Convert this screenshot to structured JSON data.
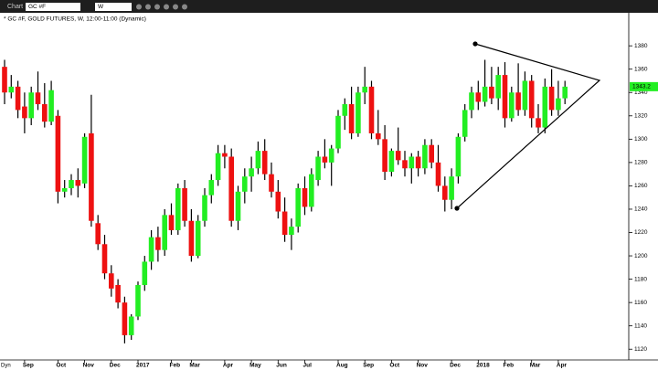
{
  "toolbar": {
    "window": "Chart",
    "symbol": "GC #F",
    "interval": "W"
  },
  "footer": "Dyn",
  "chart_data": {
    "type": "candlestick",
    "title": "* GC #F, GOLD FUTURES, W, 12:00-11:00 (Dynamic)",
    "categories": [
      null,
      null,
      null,
      "Sep",
      null,
      null,
      null,
      null,
      "Oct",
      null,
      null,
      null,
      "Nov",
      null,
      null,
      null,
      "Dec",
      null,
      null,
      null,
      "2017",
      null,
      null,
      null,
      null,
      "Feb",
      null,
      null,
      "Mar",
      null,
      null,
      null,
      null,
      "Apr",
      null,
      null,
      null,
      "May",
      null,
      null,
      null,
      "Jun",
      null,
      null,
      null,
      "Jul",
      null,
      null,
      null,
      null,
      "Aug",
      null,
      null,
      null,
      "Sep",
      null,
      null,
      null,
      "Oct",
      null,
      null,
      null,
      "Nov",
      null,
      null,
      null,
      null,
      "Dec",
      null,
      null,
      null,
      "2018",
      null,
      null,
      null,
      "Feb",
      null,
      null,
      null,
      "Mar",
      null,
      null,
      null,
      "Apr",
      null
    ],
    "open": [
      1362,
      1340,
      1345,
      1328,
      1318,
      1340,
      1330,
      1315,
      1320,
      1255,
      1258,
      1265,
      1262,
      1305,
      1228,
      1210,
      1185,
      1175,
      1160,
      1132,
      1148,
      1175,
      1195,
      1216,
      1205,
      1235,
      1222,
      1258,
      1230,
      1200,
      1230,
      1252,
      1265,
      1288,
      1285,
      1230,
      1255,
      1268,
      1275,
      1290,
      1270,
      1255,
      1238,
      1218,
      1225,
      1258,
      1242,
      1265,
      1285,
      1280,
      1292,
      1320,
      1330,
      1305,
      1340,
      1345,
      1305,
      1300,
      1272,
      1290,
      1282,
      1275,
      1285,
      1275,
      1295,
      1280,
      1260,
      1248,
      1268,
      1302,
      1325,
      1340,
      1332,
      1345,
      1335,
      1355,
      1318,
      1340,
      1325,
      1350,
      1318,
      1310,
      1345,
      1325,
      1335
    ],
    "high": [
      1368,
      1355,
      1350,
      1340,
      1345,
      1358,
      1348,
      1350,
      1325,
      1265,
      1270,
      1275,
      1305,
      1338,
      1235,
      1218,
      1192,
      1180,
      1165,
      1150,
      1178,
      1200,
      1222,
      1225,
      1240,
      1245,
      1262,
      1265,
      1240,
      1235,
      1258,
      1270,
      1295,
      1295,
      1292,
      1260,
      1275,
      1285,
      1298,
      1300,
      1280,
      1265,
      1250,
      1232,
      1262,
      1268,
      1275,
      1290,
      1300,
      1295,
      1325,
      1335,
      1345,
      1345,
      1362,
      1350,
      1325,
      1312,
      1292,
      1310,
      1290,
      1288,
      1290,
      1300,
      1300,
      1295,
      1268,
      1275,
      1305,
      1330,
      1345,
      1350,
      1368,
      1362,
      1362,
      1366,
      1345,
      1365,
      1358,
      1355,
      1330,
      1352,
      1360,
      1350,
      1350
    ],
    "low": [
      1330,
      1335,
      1318,
      1305,
      1312,
      1325,
      1310,
      1312,
      1245,
      1250,
      1252,
      1250,
      1258,
      1225,
      1205,
      1180,
      1165,
      1155,
      1125,
      1128,
      1145,
      1170,
      1188,
      1195,
      1200,
      1218,
      1218,
      1225,
      1195,
      1198,
      1225,
      1245,
      1260,
      1275,
      1225,
      1222,
      1245,
      1255,
      1270,
      1265,
      1250,
      1232,
      1212,
      1205,
      1220,
      1235,
      1238,
      1260,
      1275,
      1260,
      1288,
      1308,
      1300,
      1302,
      1330,
      1300,
      1295,
      1265,
      1268,
      1278,
      1268,
      1262,
      1268,
      1270,
      1275,
      1255,
      1238,
      1240,
      1262,
      1298,
      1318,
      1325,
      1328,
      1330,
      1325,
      1310,
      1315,
      1320,
      1320,
      1310,
      1305,
      1305,
      1320,
      1320,
      1330
    ],
    "close": [
      1340,
      1345,
      1325,
      1318,
      1340,
      1330,
      1315,
      1342,
      1255,
      1258,
      1265,
      1260,
      1302,
      1230,
      1210,
      1185,
      1172,
      1160,
      1132,
      1148,
      1175,
      1195,
      1216,
      1205,
      1235,
      1222,
      1258,
      1230,
      1200,
      1230,
      1252,
      1265,
      1288,
      1285,
      1230,
      1255,
      1268,
      1275,
      1290,
      1270,
      1255,
      1238,
      1218,
      1225,
      1258,
      1242,
      1270,
      1285,
      1280,
      1292,
      1320,
      1330,
      1305,
      1340,
      1345,
      1305,
      1300,
      1272,
      1290,
      1282,
      1275,
      1285,
      1275,
      1295,
      1280,
      1260,
      1248,
      1268,
      1302,
      1325,
      1340,
      1332,
      1345,
      1335,
      1355,
      1318,
      1340,
      1325,
      1350,
      1318,
      1310,
      1345,
      1325,
      1335,
      1345
    ],
    "up_color": "#22ee22",
    "down_color": "#ee1111",
    "last_price_label": "1343.2",
    "ylim": [
      1110,
      1395
    ],
    "yticks": [
      1120,
      1140,
      1160,
      1180,
      1200,
      1220,
      1240,
      1260,
      1280,
      1300,
      1320,
      1340,
      1360,
      1380
    ]
  }
}
